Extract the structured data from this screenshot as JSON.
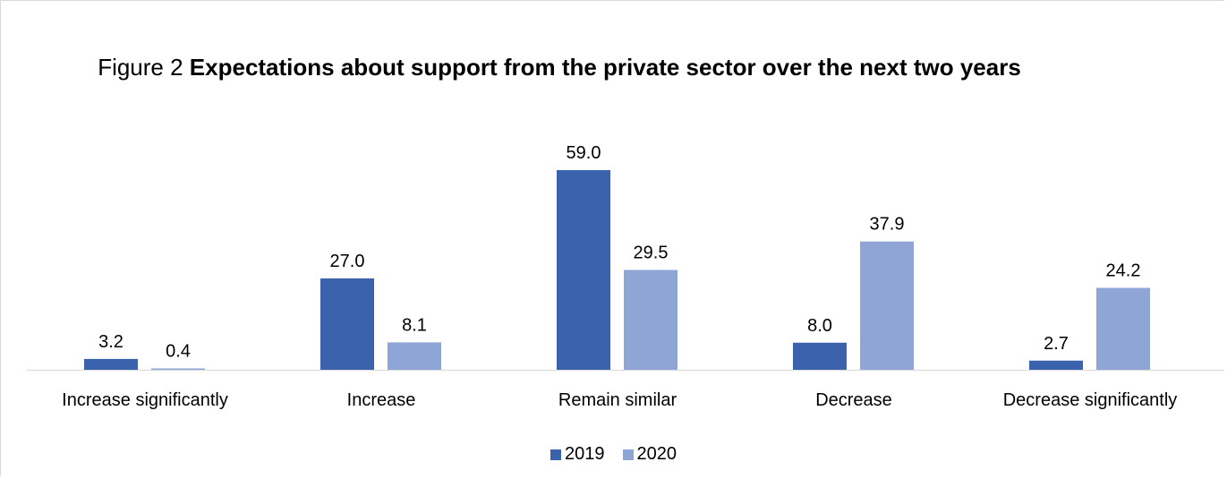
{
  "title": {
    "prefix": "Figure 2 ",
    "main": "Expectations about support from the private sector over the next two years"
  },
  "chart_data": {
    "type": "bar",
    "categories": [
      "Increase significantly",
      "Increase",
      "Remain similar",
      "Decrease",
      "Decrease significantly"
    ],
    "series": [
      {
        "name": "2019",
        "color": "#3a62ad",
        "values": [
          3.2,
          27.0,
          59.0,
          8.0,
          2.7
        ]
      },
      {
        "name": "2020",
        "color": "#8fa5d5",
        "values": [
          0.4,
          8.1,
          29.5,
          37.9,
          24.2
        ]
      }
    ],
    "ylim": [
      0,
      60
    ],
    "grid": false,
    "legend": "bottom"
  }
}
